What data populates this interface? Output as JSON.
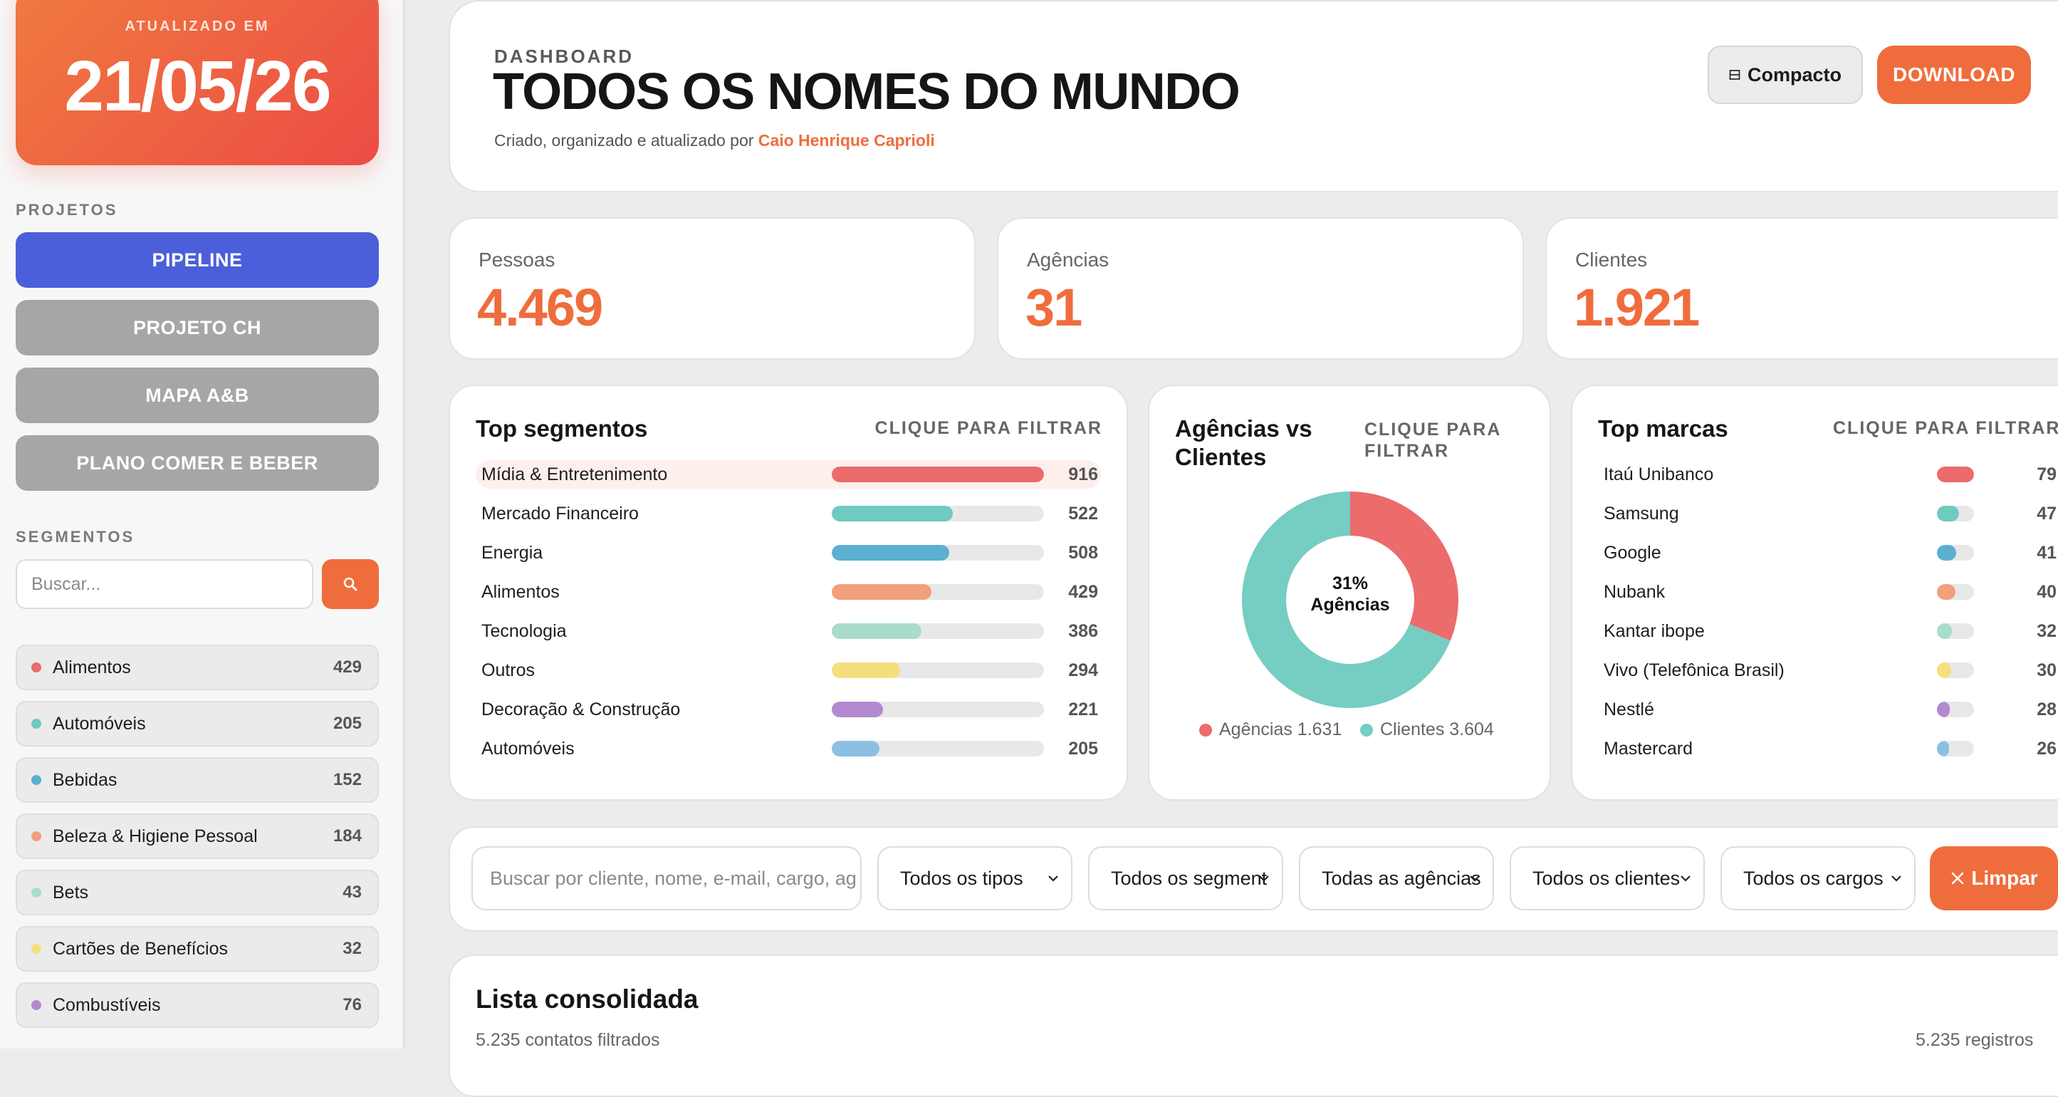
{
  "sidebar": {
    "updated_label": "ATUALIZADO EM",
    "updated_date": "21/05/26",
    "projects_heading": "PROJETOS",
    "projects": [
      {
        "label": "PIPELINE",
        "active": true
      },
      {
        "label": "PROJETO CH",
        "active": false
      },
      {
        "label": "MAPA A&B",
        "active": false
      },
      {
        "label": "PLANO COMER E BEBER",
        "active": false
      }
    ],
    "segments_heading": "SEGMENTOS",
    "search_placeholder": "Buscar...",
    "search_icon": "magnifier-icon",
    "segments": [
      {
        "name": "Alimentos",
        "count": "429",
        "color": "#ec6b6b"
      },
      {
        "name": "Automóveis",
        "count": "205",
        "color": "#6fcabf"
      },
      {
        "name": "Bebidas",
        "count": "152",
        "color": "#5bb0cf"
      },
      {
        "name": "Beleza & Higiene Pessoal",
        "count": "184",
        "color": "#f2a07c"
      },
      {
        "name": "Bets",
        "count": "43",
        "color": "#a9dccb"
      },
      {
        "name": "Cartões de Benefícios",
        "count": "32",
        "color": "#f5df7d"
      },
      {
        "name": "Combustíveis",
        "count": "76",
        "color": "#b38ad0"
      }
    ]
  },
  "header": {
    "label": "DASHBOARD",
    "title": "TODOS OS NOMES DO MUNDO",
    "subtitle_prefix": "Criado, organizado e atualizado por",
    "author": "Caio Henrique Caprioli",
    "compact_icon": "compact-view-icon",
    "compact_label": "Compacto",
    "download_label": "DOWNLOAD"
  },
  "stats": [
    {
      "label": "Pessoas",
      "value": "4.469"
    },
    {
      "label": "Agências",
      "value": "31"
    },
    {
      "label": "Clientes",
      "value": "1.921"
    }
  ],
  "top_segments": {
    "title": "Top segmentos",
    "hint": "CLIQUE PARA FILTRAR",
    "max": 916,
    "rows": [
      {
        "name": "Mídia & Entretenimento",
        "value": 916,
        "label": "916",
        "color": "#ec6b6b",
        "highlight": true
      },
      {
        "name": "Mercado Financeiro",
        "value": 522,
        "label": "522",
        "color": "#6fcabf"
      },
      {
        "name": "Energia",
        "value": 508,
        "label": "508",
        "color": "#5bb0cf"
      },
      {
        "name": "Alimentos",
        "value": 429,
        "label": "429",
        "color": "#f2a07c"
      },
      {
        "name": "Tecnologia",
        "value": 386,
        "label": "386",
        "color": "#a9dccb"
      },
      {
        "name": "Outros",
        "value": 294,
        "label": "294",
        "color": "#f5df7d"
      },
      {
        "name": "Decoração & Construção",
        "value": 221,
        "label": "221",
        "color": "#b38ad0"
      },
      {
        "name": "Automóveis",
        "value": 205,
        "label": "205",
        "color": "#8cc0e3"
      }
    ]
  },
  "donut": {
    "title": "Agências vs Clientes",
    "hint": "CLIQUE PARA FILTRAR",
    "center_pct": "31%",
    "center_label": "Agências",
    "legend": [
      {
        "label": "Agências 1.631",
        "value": 1631,
        "color": "#ec6b6b"
      },
      {
        "label": "Clientes 3.604",
        "value": 3604,
        "color": "#76cdc2"
      }
    ]
  },
  "top_brands": {
    "title": "Top marcas",
    "hint": "CLIQUE PARA FILTRAR",
    "max": 79,
    "rows": [
      {
        "name": "Itaú Unibanco",
        "value": 79,
        "label": "79",
        "color": "#ec6b6b"
      },
      {
        "name": "Samsung",
        "value": 47,
        "label": "47",
        "color": "#6fcabf"
      },
      {
        "name": "Google",
        "value": 41,
        "label": "41",
        "color": "#5bb0cf"
      },
      {
        "name": "Nubank",
        "value": 40,
        "label": "40",
        "color": "#f2a07c"
      },
      {
        "name": "Kantar ibope",
        "value": 32,
        "label": "32",
        "color": "#a9dccb"
      },
      {
        "name": "Vivo (Telefônica Brasil)",
        "value": 30,
        "label": "30",
        "color": "#f5df7d"
      },
      {
        "name": "Nestlé",
        "value": 28,
        "label": "28",
        "color": "#b38ad0"
      },
      {
        "name": "Mastercard",
        "value": 26,
        "label": "26",
        "color": "#8cc0e3"
      }
    ]
  },
  "filters": {
    "search_placeholder": "Buscar por cliente, nome, e-mail, cargo, ag",
    "selects": [
      "Todos os tipos",
      "Todos os segment",
      "Todas as agências",
      "Todos os clientes",
      "Todos os cargos"
    ],
    "clear_label": "Limpar",
    "clear_icon": "close-x-icon"
  },
  "list": {
    "title": "Lista consolidada",
    "subtitle": "5.235 contatos filtrados",
    "count": "5.235 registros"
  }
}
